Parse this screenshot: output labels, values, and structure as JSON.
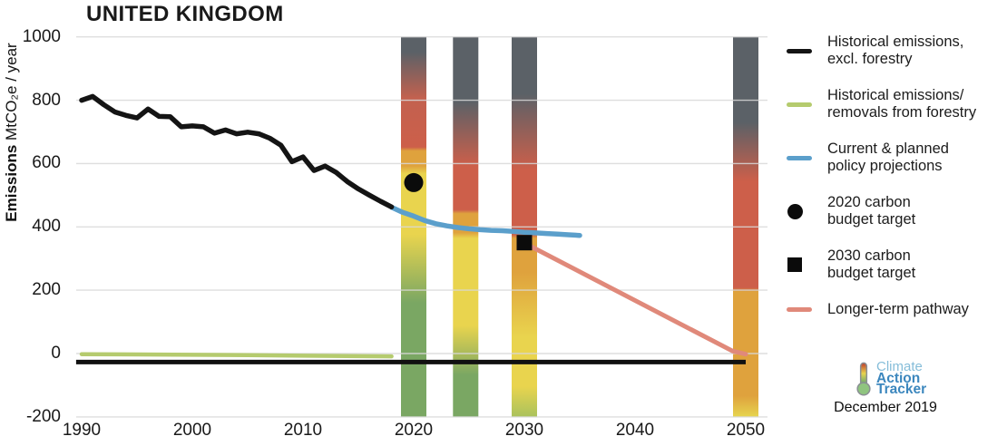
{
  "title": "UNITED KINGDOM",
  "source": {
    "logo_lines": [
      "Climate",
      "Action",
      "Tracker"
    ],
    "logo_colors": [
      "#85bdd9",
      "#3c87be",
      "#3c87be"
    ],
    "date": "December 2019"
  },
  "legend": {
    "items": [
      {
        "id": "historical-excl-forestry",
        "swatch": "line",
        "color": "#141414",
        "lines": [
          "Historical emissions,",
          "excl. forestry"
        ]
      },
      {
        "id": "forestry",
        "swatch": "line",
        "color": "#b5cb6e",
        "lines": [
          "Historical emissions/",
          "removals from forestry"
        ]
      },
      {
        "id": "policy-projections",
        "swatch": "line",
        "color": "#5b9fcb",
        "lines": [
          "Current & planned",
          "policy projections"
        ]
      },
      {
        "id": "budget-2020",
        "swatch": "circle",
        "color": "#0b0b0b",
        "lines": [
          "2020 carbon",
          "budget target"
        ]
      },
      {
        "id": "budget-2030",
        "swatch": "square",
        "color": "#0b0b0b",
        "lines": [
          "2030 carbon",
          "budget target"
        ]
      },
      {
        "id": "longer-term-pathway",
        "swatch": "line",
        "color": "#e0897a",
        "lines": [
          "Longer-term pathway"
        ]
      }
    ]
  },
  "chart_data": {
    "type": "line",
    "title": "UNITED KINGDOM",
    "ylabel": "Emissions MtCO₂e / year",
    "ylabel_bold": "Emissions",
    "ylabel_rest": " MtCO₂e / year",
    "xlim": [
      1990,
      2050
    ],
    "ylim": [
      -200,
      1000
    ],
    "xticks": [
      1990,
      2000,
      2010,
      2020,
      2030,
      2040,
      2050
    ],
    "yticks": [
      1000,
      800,
      600,
      400,
      200,
      0,
      -200
    ],
    "grid": true,
    "grid_color": "#d8d8d8",
    "legend_position": "right",
    "bar_top": 1000,
    "bar_bottom": -200,
    "series": [
      {
        "id": "zero-baseline-line",
        "name": "Zero baseline",
        "color": "#111111",
        "width": 5,
        "linecap": "butt",
        "points": [
          [
            1989.5,
            -27
          ],
          [
            2050,
            -27
          ]
        ]
      },
      {
        "id": "longer-term-pathway-line",
        "name": "Longer-term pathway",
        "color": "#e0897a",
        "width": 5,
        "points": [
          [
            2030,
            349
          ],
          [
            2048.8,
            8
          ],
          [
            2050,
            -2
          ]
        ]
      },
      {
        "id": "policy-projection-line",
        "name": "Current & planned policy projections",
        "color": "#5b9fcb",
        "width": 5.5,
        "points": [
          [
            2018,
            462
          ],
          [
            2019,
            446
          ],
          [
            2020,
            434
          ],
          [
            2021,
            420
          ],
          [
            2022,
            410
          ],
          [
            2023,
            403
          ],
          [
            2024,
            398
          ],
          [
            2025,
            394
          ],
          [
            2026,
            391
          ],
          [
            2027,
            389
          ],
          [
            2028,
            388
          ],
          [
            2029,
            386
          ],
          [
            2030,
            383
          ],
          [
            2031,
            381
          ],
          [
            2032,
            379
          ],
          [
            2033,
            377
          ],
          [
            2034,
            375
          ],
          [
            2035,
            373
          ]
        ]
      },
      {
        "id": "forestry-line",
        "name": "Historical emissions/removals from forestry",
        "color": "#b5cb6e",
        "width": 4.5,
        "points": [
          [
            1990,
            -2
          ],
          [
            1995,
            -3
          ],
          [
            2000,
            -4
          ],
          [
            2005,
            -5
          ],
          [
            2010,
            -7
          ],
          [
            2018,
            -9
          ]
        ]
      },
      {
        "id": "historical-emissions-line",
        "name": "Historical emissions, excl. forestry",
        "color": "#141414",
        "width": 5.5,
        "points": [
          [
            1990,
            800
          ],
          [
            1991,
            812
          ],
          [
            1992,
            786
          ],
          [
            1993,
            763
          ],
          [
            1994,
            752
          ],
          [
            1995,
            744
          ],
          [
            1996,
            772
          ],
          [
            1997,
            749
          ],
          [
            1998,
            748
          ],
          [
            1999,
            716
          ],
          [
            2000,
            719
          ],
          [
            2001,
            716
          ],
          [
            2002,
            696
          ],
          [
            2003,
            706
          ],
          [
            2004,
            694
          ],
          [
            2005,
            699
          ],
          [
            2006,
            694
          ],
          [
            2007,
            680
          ],
          [
            2008,
            658
          ],
          [
            2009,
            606
          ],
          [
            2010,
            621
          ],
          [
            2011,
            578
          ],
          [
            2012,
            592
          ],
          [
            2013,
            572
          ],
          [
            2014,
            543
          ],
          [
            2015,
            520
          ],
          [
            2016,
            500
          ],
          [
            2017,
            481
          ],
          [
            2018,
            463
          ]
        ]
      }
    ],
    "markers": [
      {
        "id": "carbon-budget-2020-marker",
        "label": "2020 carbon budget target",
        "shape": "circle",
        "x": 2020,
        "y": 540
      },
      {
        "id": "carbon-budget-2030-marker",
        "label": "2030 carbon budget target",
        "shape": "square",
        "x": 2030,
        "y": 350
      }
    ],
    "rating_bars": [
      {
        "year": 2020,
        "label": "2020 rating bar",
        "stops": [
          {
            "at": 0,
            "color": "#5b6167"
          },
          {
            "at": 4,
            "color": "#5b6167"
          },
          {
            "at": 16,
            "color": "#c2614f"
          },
          {
            "at": 29,
            "color": "#cd5f4a"
          },
          {
            "at": 30,
            "color": "#dfa23d"
          },
          {
            "at": 34,
            "color": "#dfa23d"
          },
          {
            "at": 36,
            "color": "#e9d44e"
          },
          {
            "at": 52,
            "color": "#e9d44e"
          },
          {
            "at": 70,
            "color": "#7aa763"
          },
          {
            "at": 100,
            "color": "#7aa763"
          }
        ]
      },
      {
        "year": 2024.7,
        "label": "2025 rating bar",
        "stops": [
          {
            "at": 0,
            "color": "#5b6167"
          },
          {
            "at": 17,
            "color": "#5b6167"
          },
          {
            "at": 34,
            "color": "#cd5f4a"
          },
          {
            "at": 45.5,
            "color": "#cd5f4a"
          },
          {
            "at": 46.5,
            "color": "#dfa23d"
          },
          {
            "at": 51.5,
            "color": "#dfa23d"
          },
          {
            "at": 53,
            "color": "#e9d44e"
          },
          {
            "at": 76,
            "color": "#e9d44e"
          },
          {
            "at": 89,
            "color": "#7aa763"
          },
          {
            "at": 100,
            "color": "#7aa763"
          }
        ]
      },
      {
        "year": 2030,
        "label": "2030 rating bar",
        "stops": [
          {
            "at": 0,
            "color": "#5b6167"
          },
          {
            "at": 15,
            "color": "#5b6167"
          },
          {
            "at": 35,
            "color": "#cd5f4a"
          },
          {
            "at": 52,
            "color": "#cd5f4a"
          },
          {
            "at": 53,
            "color": "#dfa23d"
          },
          {
            "at": 62,
            "color": "#dfa23d"
          },
          {
            "at": 79,
            "color": "#e9d44e"
          },
          {
            "at": 92,
            "color": "#e9d44e"
          },
          {
            "at": 100,
            "color": "#a9c25d"
          }
        ]
      },
      {
        "year": 2050,
        "label": "2050 rating bar",
        "stops": [
          {
            "at": 0,
            "color": "#5b6167"
          },
          {
            "at": 22.5,
            "color": "#5b6167"
          },
          {
            "at": 38,
            "color": "#cd5f4a"
          },
          {
            "at": 66,
            "color": "#cd5f4a"
          },
          {
            "at": 67,
            "color": "#dfa23d"
          },
          {
            "at": 94.5,
            "color": "#dfa23d"
          },
          {
            "at": 100,
            "color": "#e6d54f"
          }
        ]
      }
    ]
  }
}
